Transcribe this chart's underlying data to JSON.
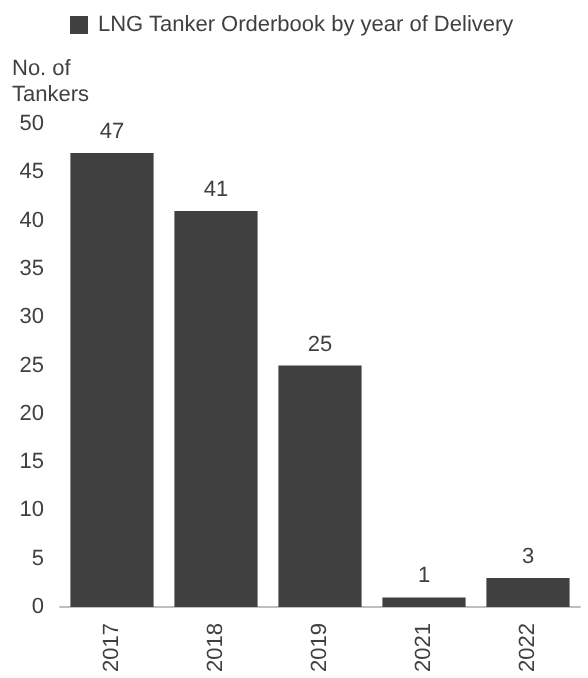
{
  "chart_data": {
    "type": "bar",
    "ylabel": "No. of\nTankers",
    "categories": [
      "2017",
      "2018",
      "2019",
      "2021",
      "2022"
    ],
    "series": [
      {
        "name": "LNG Tanker Orderbook by year of Delivery",
        "color": "#404040",
        "values": [
          47,
          41,
          25,
          1,
          3
        ]
      }
    ],
    "ylim": [
      0,
      50
    ],
    "yticks": [
      0,
      5,
      10,
      15,
      20,
      25,
      30,
      35,
      40,
      45,
      50
    ],
    "grid": false,
    "legend": "top",
    "data_labels": true
  }
}
